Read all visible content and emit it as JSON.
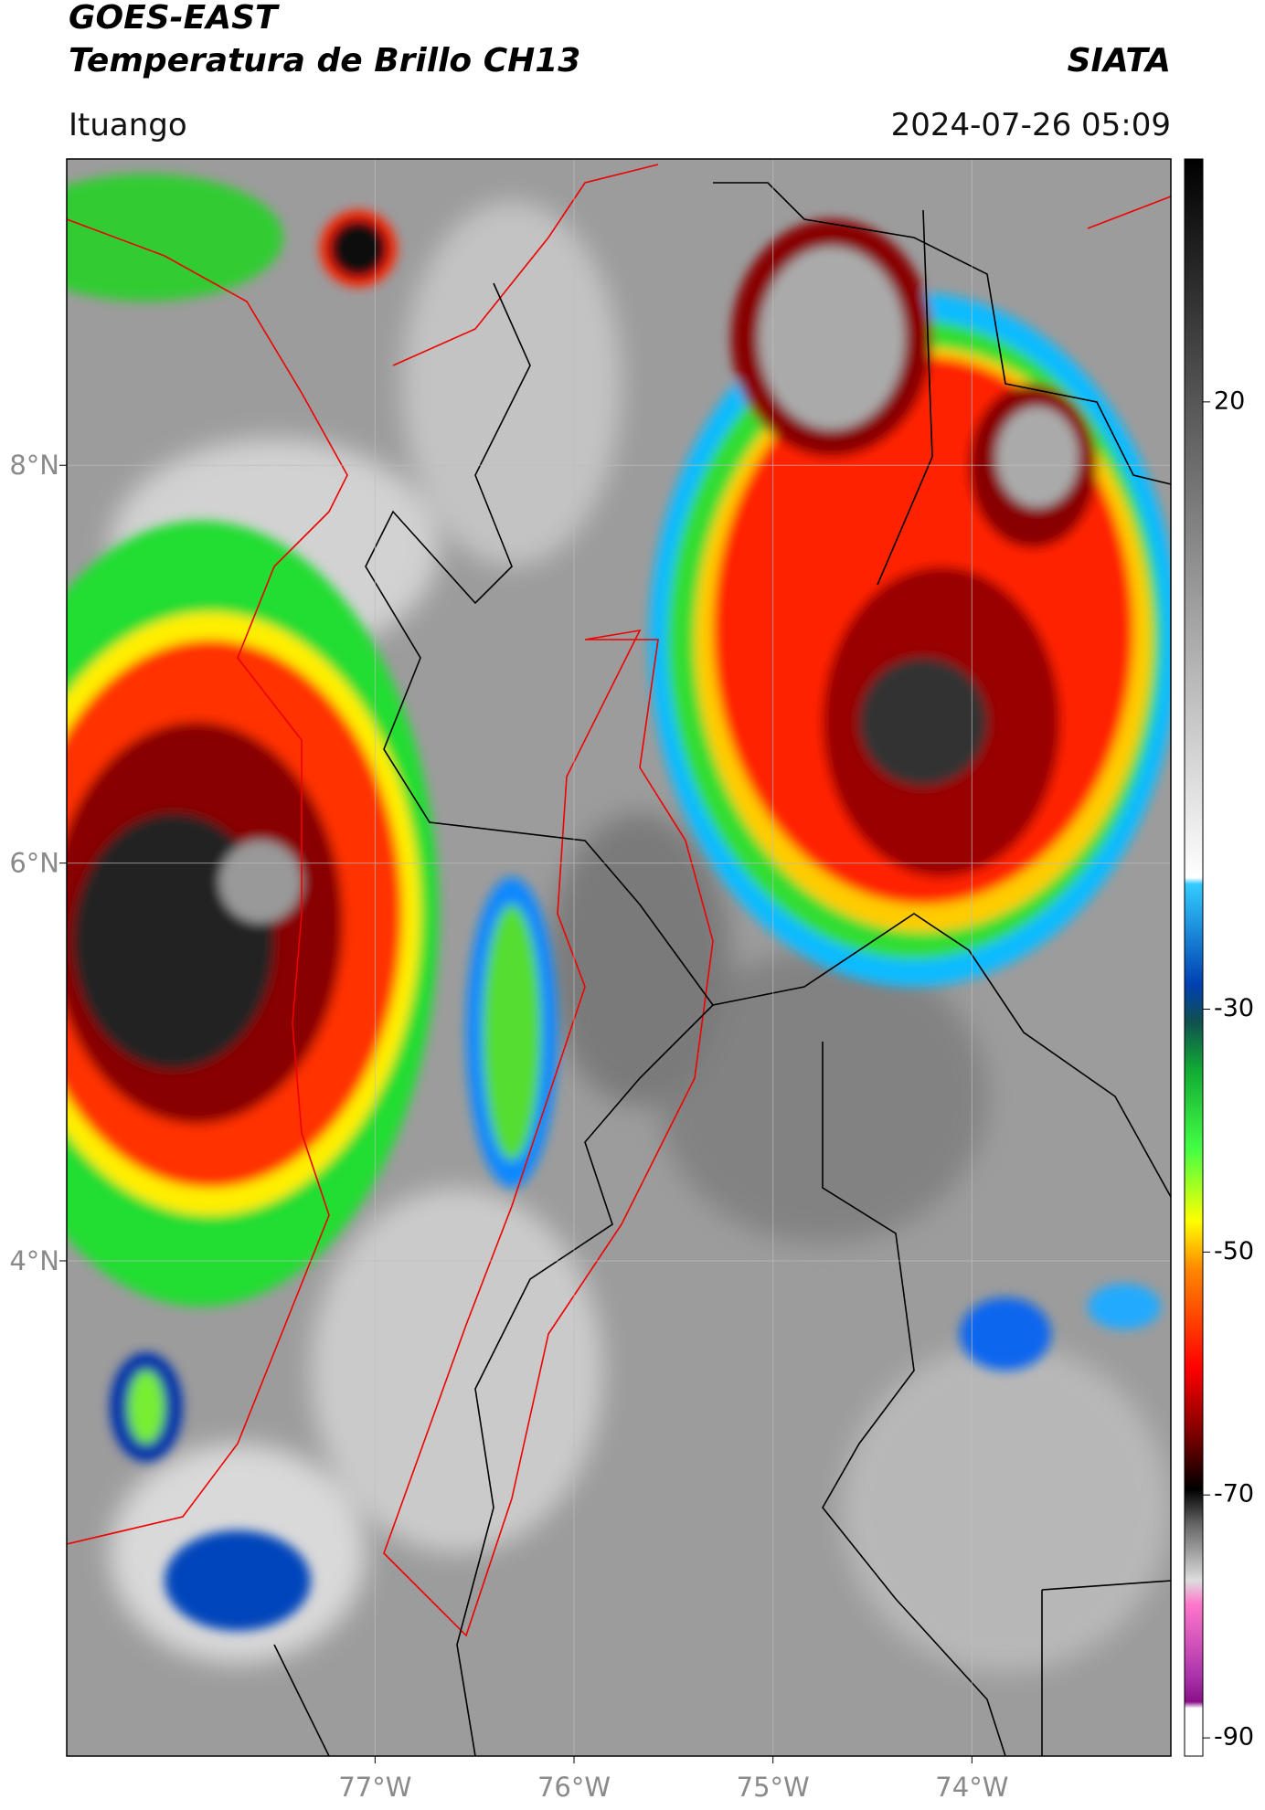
{
  "header": {
    "title": "GOES-EAST",
    "subtitle": "Temperatura de Brillo CH13",
    "source": "SIATA",
    "location": "Ituango",
    "datetime": "2024-07-26 05:09"
  },
  "map": {
    "xlim": [
      -78.55,
      -73.0
    ],
    "ylim": [
      1.51,
      9.54
    ],
    "xticks": [
      {
        "value": -77,
        "label": "77°W"
      },
      {
        "value": -76,
        "label": "76°W"
      },
      {
        "value": -75,
        "label": "75°W"
      },
      {
        "value": -74,
        "label": "74°W"
      }
    ],
    "yticks": [
      {
        "value": 8,
        "label": "8°N"
      },
      {
        "value": 6,
        "label": "6°N"
      },
      {
        "value": 4,
        "label": "4°N"
      }
    ]
  },
  "colorbar": {
    "lim": [
      -91.5,
      40
    ],
    "ticks": [
      20,
      -30,
      -50,
      -70,
      -90
    ]
  }
}
